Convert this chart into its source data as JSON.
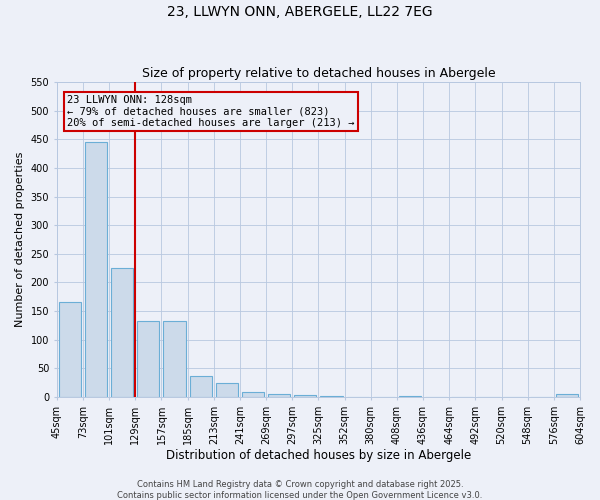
{
  "title": "23, LLWYN ONN, ABERGELE, LL22 7EG",
  "subtitle": "Size of property relative to detached houses in Abergele",
  "xlabel": "Distribution of detached houses by size in Abergele",
  "ylabel": "Number of detached properties",
  "bar_values": [
    165,
    445,
    225,
    133,
    133,
    36,
    25,
    9,
    5,
    4,
    1,
    0,
    0,
    1,
    0,
    0,
    0,
    0,
    0,
    5
  ],
  "bin_labels": [
    "45sqm",
    "73sqm",
    "101sqm",
    "129sqm",
    "157sqm",
    "185sqm",
    "213sqm",
    "241sqm",
    "269sqm",
    "297sqm",
    "325sqm",
    "352sqm",
    "380sqm",
    "408sqm",
    "436sqm",
    "464sqm",
    "492sqm",
    "520sqm",
    "548sqm",
    "576sqm",
    "604sqm"
  ],
  "bar_color": "#ccdaea",
  "bar_edge_color": "#6baed6",
  "ylim": [
    0,
    550
  ],
  "yticks": [
    0,
    50,
    100,
    150,
    200,
    250,
    300,
    350,
    400,
    450,
    500,
    550
  ],
  "red_line_x": 2.5,
  "red_line_color": "#cc0000",
  "annotation_text_line1": "23 LLWYN ONN: 128sqm",
  "annotation_text_line2": "← 79% of detached houses are smaller (823)",
  "annotation_text_line3": "20% of semi-detached houses are larger (213) →",
  "background_color": "#edf0f8",
  "grid_color": "#b8c8e0",
  "footer_text1": "Contains HM Land Registry data © Crown copyright and database right 2025.",
  "footer_text2": "Contains public sector information licensed under the Open Government Licence v3.0.",
  "title_fontsize": 10,
  "subtitle_fontsize": 9,
  "ylabel_fontsize": 8,
  "xlabel_fontsize": 8.5,
  "tick_fontsize": 7,
  "annot_fontsize": 7.5,
  "footer_fontsize": 6
}
